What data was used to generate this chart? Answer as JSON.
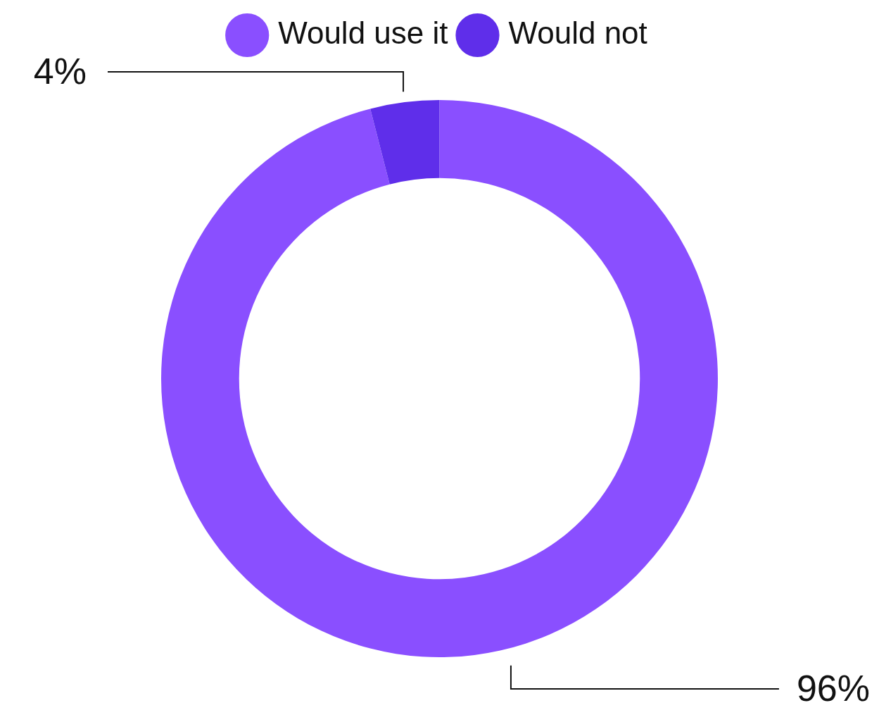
{
  "chart_data": {
    "type": "donut",
    "categories": [
      "Would use it",
      "Would not"
    ],
    "values": [
      96,
      4
    ],
    "colors": [
      "#8a4fff",
      "#5f2eea"
    ],
    "value_labels": [
      "96%",
      "4%"
    ],
    "legend": "top"
  }
}
